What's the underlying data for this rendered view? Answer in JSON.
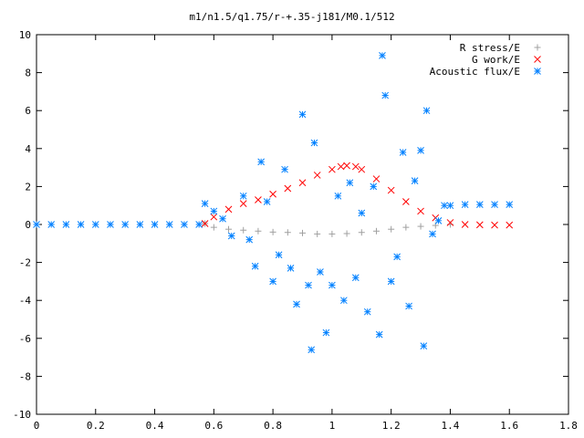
{
  "chart_data": {
    "type": "scatter",
    "title": "m1/n1.5/q1.75/r-+.35-j181/M0.1/512",
    "xlabel": "",
    "ylabel": "",
    "xlim": [
      0,
      1.8
    ],
    "ylim": [
      -10,
      10
    ],
    "xticks": [
      "0",
      "0.2",
      "0.4",
      "0.6",
      "0.8",
      "1",
      "1.2",
      "1.4",
      "1.6",
      "1.8"
    ],
    "yticks": [
      "10",
      "8",
      "6",
      "4",
      "2",
      "0",
      "-2",
      "-4",
      "-6",
      "-8",
      "-10"
    ],
    "grid": false,
    "legend_position": "top-right",
    "series": [
      {
        "name": "R stress/E",
        "marker": "plus",
        "color": "#a0a0a0",
        "x": [
          0.57,
          0.6,
          0.65,
          0.7,
          0.75,
          0.8,
          0.85,
          0.9,
          0.95,
          1.0,
          1.05,
          1.1,
          1.15,
          1.2,
          1.25,
          1.3,
          1.35,
          1.4
        ],
        "y": [
          0.05,
          -0.15,
          -0.25,
          -0.3,
          -0.35,
          -0.4,
          -0.42,
          -0.45,
          -0.5,
          -0.5,
          -0.48,
          -0.42,
          -0.35,
          -0.25,
          -0.15,
          -0.1,
          -0.05,
          0.0
        ]
      },
      {
        "name": "G work/E",
        "marker": "x",
        "color": "#ff0000",
        "x": [
          0.57,
          0.6,
          0.65,
          0.7,
          0.75,
          0.8,
          0.85,
          0.9,
          0.95,
          1.0,
          1.03,
          1.05,
          1.08,
          1.1,
          1.15,
          1.2,
          1.25,
          1.3,
          1.35,
          1.4,
          1.45,
          1.5,
          1.55,
          1.6
        ],
        "y": [
          0.05,
          0.4,
          0.8,
          1.1,
          1.3,
          1.6,
          1.9,
          2.2,
          2.6,
          2.9,
          3.05,
          3.1,
          3.05,
          2.9,
          2.4,
          1.8,
          1.2,
          0.7,
          0.35,
          0.1,
          0.0,
          -0.02,
          -0.03,
          -0.03
        ]
      },
      {
        "name": "Acoustic flux/E",
        "marker": "star",
        "color": "#0080ff",
        "x": [
          0.0,
          0.05,
          0.1,
          0.15,
          0.2,
          0.25,
          0.3,
          0.35,
          0.4,
          0.45,
          0.5,
          0.55,
          0.57,
          0.6,
          0.63,
          0.66,
          0.7,
          0.72,
          0.74,
          0.76,
          0.78,
          0.8,
          0.82,
          0.84,
          0.86,
          0.88,
          0.9,
          0.92,
          0.93,
          0.94,
          0.96,
          0.98,
          1.0,
          1.02,
          1.04,
          1.06,
          1.08,
          1.1,
          1.12,
          1.14,
          1.16,
          1.17,
          1.18,
          1.2,
          1.22,
          1.24,
          1.26,
          1.28,
          1.3,
          1.31,
          1.32,
          1.34,
          1.36,
          1.38,
          1.4,
          1.45,
          1.5,
          1.55,
          1.6
        ],
        "y": [
          0.0,
          0.0,
          0.0,
          0.0,
          0.0,
          0.0,
          0.0,
          0.0,
          0.0,
          0.0,
          0.0,
          0.0,
          1.1,
          0.7,
          0.3,
          -0.6,
          1.5,
          -0.8,
          -2.2,
          3.3,
          1.2,
          -3.0,
          -1.6,
          2.9,
          -2.3,
          -4.2,
          5.8,
          -3.2,
          -6.6,
          4.3,
          -2.5,
          -5.7,
          -3.2,
          1.5,
          -4.0,
          2.2,
          -2.8,
          0.6,
          -4.6,
          2.0,
          -5.8,
          8.9,
          6.8,
          -3.0,
          -1.7,
          3.8,
          -4.3,
          2.3,
          3.9,
          -6.4,
          6.0,
          -0.5,
          0.2,
          1.0,
          1.0,
          1.05,
          1.05,
          1.05,
          1.05
        ]
      }
    ]
  }
}
